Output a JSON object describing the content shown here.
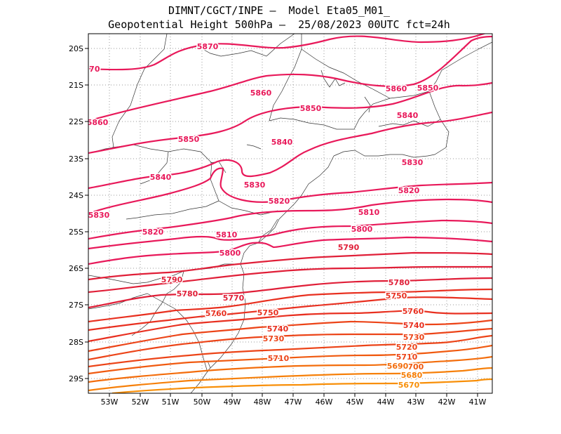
{
  "header": {
    "line1": "DIMNT/CGCT/INPE –  Model Eta05_M01_",
    "line2": "Geopotential Height 500hPa –  25/08/2023 00UTC fct=24h"
  },
  "axes": {
    "lat_labels": [
      "20S",
      "21S",
      "22S",
      "23S",
      "24S",
      "25S",
      "26S",
      "27S",
      "28S",
      "29S"
    ],
    "lon_labels": [
      "53W",
      "52W",
      "51W",
      "50W",
      "49W",
      "48W",
      "47W",
      "46W",
      "45W",
      "44W",
      "43W",
      "42W",
      "41W"
    ]
  },
  "contours": {
    "labels": [
      {
        "text": "5870",
        "color": "#e8195a"
      },
      {
        "text": "870",
        "color": "#e8195a"
      },
      {
        "text": "5860",
        "color": "#e8195a"
      },
      {
        "text": "5860",
        "color": "#e8195a"
      },
      {
        "text": "5860",
        "color": "#e8195a"
      },
      {
        "text": "5850",
        "color": "#e8195a"
      },
      {
        "text": "5850",
        "color": "#e8195a"
      },
      {
        "text": "5850",
        "color": "#e8195a"
      },
      {
        "text": "5840",
        "color": "#e8195a"
      },
      {
        "text": "5840",
        "color": "#e8195a"
      },
      {
        "text": "5840",
        "color": "#e8195a"
      },
      {
        "text": "5830",
        "color": "#e8195a"
      },
      {
        "text": "5830",
        "color": "#e8195a"
      },
      {
        "text": "5830",
        "color": "#e8195a"
      },
      {
        "text": "5820",
        "color": "#e8195a"
      },
      {
        "text": "5820",
        "color": "#e8195a"
      },
      {
        "text": "5820",
        "color": "#e8195a"
      },
      {
        "text": "5810",
        "color": "#e8195a"
      },
      {
        "text": "5810",
        "color": "#e8195a"
      },
      {
        "text": "5800",
        "color": "#e8195a"
      },
      {
        "text": "5800",
        "color": "#e8195a"
      },
      {
        "text": "5790",
        "color": "#e01f38"
      },
      {
        "text": "5790",
        "color": "#e01f38"
      },
      {
        "text": "5780",
        "color": "#e01f38"
      },
      {
        "text": "5780",
        "color": "#e01f38"
      },
      {
        "text": "5770",
        "color": "#e01f38"
      },
      {
        "text": "5760",
        "color": "#e83020"
      },
      {
        "text": "5750",
        "color": "#e83020"
      },
      {
        "text": "5750",
        "color": "#e83020"
      },
      {
        "text": "5760",
        "color": "#e83020"
      },
      {
        "text": "5740",
        "color": "#e83020"
      },
      {
        "text": "5740",
        "color": "#e83020"
      },
      {
        "text": "5730",
        "color": "#ec4418"
      },
      {
        "text": "5730",
        "color": "#ec4418"
      },
      {
        "text": "5720",
        "color": "#ec4418"
      },
      {
        "text": "5710",
        "color": "#ec4418"
      },
      {
        "text": "5710",
        "color": "#ec4418"
      },
      {
        "text": "5700",
        "color": "#f05a10"
      },
      {
        "text": "5690",
        "color": "#f36d0c"
      },
      {
        "text": "5680",
        "color": "#f6800a"
      },
      {
        "text": "5670",
        "color": "#f88f08"
      }
    ]
  }
}
